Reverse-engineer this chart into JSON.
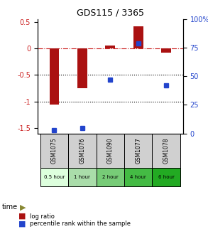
{
  "title": "GDS115 / 3365",
  "samples": [
    "GSM1075",
    "GSM1076",
    "GSM1090",
    "GSM1077",
    "GSM1078"
  ],
  "time_labels": [
    "0.5 hour",
    "1 hour",
    "2 hour",
    "4 hour",
    "6 hour"
  ],
  "time_colors": [
    "#ddffdd",
    "#aaddaa",
    "#77cc77",
    "#44bb44",
    "#22aa22"
  ],
  "log_ratio": [
    -1.05,
    -0.75,
    0.05,
    0.42,
    -0.08
  ],
  "percentile": [
    3,
    5,
    47,
    79,
    42
  ],
  "bar_color": "#aa1111",
  "dot_color": "#2244cc",
  "ylim_left": [
    -1.6,
    0.55
  ],
  "ylim_right": [
    0,
    100
  ],
  "yticks_left": [
    0.5,
    0.0,
    -0.5,
    -1.0,
    -1.5
  ],
  "ytick_labels_left": [
    "0.5",
    "0",
    "-0.5",
    "-1",
    "-1.5"
  ],
  "yticks_right": [
    100,
    75,
    50,
    25,
    0
  ],
  "ytick_labels_right": [
    "100%",
    "75",
    "50",
    "25",
    "0"
  ],
  "hline_y": [
    0.0,
    -0.5,
    -1.0
  ],
  "hline_styles": [
    "dashdot",
    "dotted",
    "dotted"
  ],
  "hline_colors": [
    "#cc2222",
    "#000000",
    "#000000"
  ]
}
